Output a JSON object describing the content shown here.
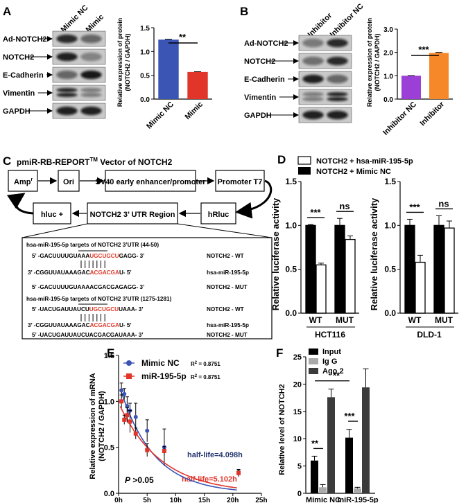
{
  "panels": {
    "A": "A",
    "B": "B",
    "C": "C",
    "D": "D",
    "E": "E",
    "F": "F"
  },
  "panelA": {
    "lanes": [
      "Mimic NC",
      "Mimic"
    ],
    "blot_labels": [
      "Ad-NOTCH2",
      "NOTCH2",
      "E-Cadherin",
      "Vimentin",
      "GAPDH"
    ],
    "sig": "**"
  },
  "panelB": {
    "lanes": [
      "Inhibitor",
      "Inhibitor NC"
    ],
    "blot_labels": [
      "Ad-NOTCH2",
      "NOTCH2",
      "E-Cadherin",
      "Vimentin",
      "GAPDH"
    ],
    "sig": "***"
  },
  "panelC": {
    "title_pre": "pmiR-RB-REPORT",
    "title_sup": "TM",
    "title_post": " Vector of NOTCH2",
    "boxes": {
      "amp": "Amp",
      "amp_sup": "r",
      "ori": "Ori",
      "sv40": "SV40 early enhancer/promoter",
      "t7": "Promoter T7",
      "hluc": "hluc +",
      "utr": "NOTCH2 3’ UTR Region",
      "hrluc": "hRluc"
    },
    "site1": {
      "header": "hsa-miR-195-5p targets of NOTCH2 3’UTR  (44-50)",
      "wt_pre": "5’ -GACUUUUGUAAA",
      "wt_red": "UGCUGCU",
      "wt_post": "GAGG-  3’",
      "wt_name": "NOTCH2 - WT",
      "mir_pre": "3’ -CGGUUAUAAAGAC",
      "mir_red": "ACGACGA",
      "mir_post": "U-  5’",
      "mir_name": "hsa-miR-195-5p",
      "mut": "5’ -GACUUUUGUAAAACGACGAGAGG-  3’",
      "mut_name": "NOTCH2 - MUT"
    },
    "site2": {
      "header": "hsa-miR-195-5p targets of NOTCH2 3’UTR  (1275-1281)",
      "wt_pre": "5’ -UACUGAUUAUCU",
      "wt_red": "UGCUGCU",
      "wt_post": "UAAA-  3’",
      "wt_name": "NOTCH2 - WT",
      "mir_pre": "3’ -CGGUUAUAAAGAC",
      "mir_red": "ACGACGA",
      "mir_post": "U-  5’",
      "mir_name": "hsa-miR-195-5p",
      "mut": "5’ -UACUGAUUAUCUACGACGAUAAA-  3’",
      "mut_name": "NOTCH2 - MUT"
    }
  },
  "panelD": {
    "legend": [
      "NOTCH2 + hsa-miR-195-5p",
      "NOTCH2 + Mimic NC"
    ]
  },
  "panelE": {
    "legend": [
      {
        "name": "Mimic NC",
        "r2": "R",
        "r2b": "2",
        "r2c": " = 0.8751"
      },
      {
        "name": "miR-195-5p",
        "r2": "R",
        "r2b": "2",
        "r2c": " = 0.8751"
      }
    ],
    "half_life": [
      "half-life=4.098h",
      "half-life=5.102h"
    ],
    "pval_p": "P",
    "pval_rest": " >0.05"
  },
  "panelF": {
    "legend": [
      "Input",
      "Ig G",
      "Ago 2"
    ]
  },
  "colors": {
    "blue": "#3a55b4",
    "red": "#e2352a",
    "purple": "#9b3fd6",
    "orange": "#f7882a",
    "navy": "#24366f",
    "mired": "#e03a2a"
  },
  "chart_data": [
    {
      "id": "A",
      "type": "bar",
      "categories": [
        "Mimic NC",
        "Mimic"
      ],
      "values": [
        1.25,
        0.57
      ],
      "errors": [
        0.01,
        0.005
      ],
      "colors": [
        "#3a55b4",
        "#e2352a"
      ],
      "ylabel": "Relative expression of  protein\n(NOTCH2 / GAPDH)",
      "ylim": [
        0,
        1.5
      ],
      "yticks": [
        0.0,
        0.5,
        1.0,
        1.5
      ],
      "ytick_labels": [
        "0.0",
        "0.5",
        "1.0",
        "1.5"
      ],
      "sig": "**"
    },
    {
      "id": "B",
      "type": "bar",
      "categories": [
        "Inhibitor NC",
        "Inhibitor"
      ],
      "values": [
        1.0,
        1.98
      ],
      "errors": [
        0.005,
        0.02
      ],
      "colors": [
        "#9b3fd6",
        "#f7882a"
      ],
      "ylabel": "Relative expression of  protein\n(NOTCH2 / GAPDH)",
      "ylim": [
        0,
        3.0
      ],
      "yticks": [
        0.0,
        1.0,
        2.0,
        3.0
      ],
      "ytick_labels": [
        "0.0",
        "1.0",
        "2.0",
        "3.0"
      ],
      "sig": "***"
    },
    {
      "id": "D1",
      "type": "bar",
      "title": "HCT116",
      "categories": [
        "WT",
        "MUT"
      ],
      "series": [
        {
          "name": "NOTCH2 + Mimic NC",
          "values": [
            1.0,
            1.0
          ],
          "errors": [
            0.01,
            0.08
          ]
        },
        {
          "name": "NOTCH2 + hsa-miR-195-5p",
          "values": [
            0.55,
            0.84
          ],
          "errors": [
            0.02,
            0.04
          ]
        }
      ],
      "ylabel": "Relative luciferase activity",
      "ylim": [
        0,
        1.5
      ],
      "yticks": [
        0.0,
        0.5,
        1.0,
        1.5
      ],
      "ytick_labels": [
        "0.0",
        "0.5",
        "1.0",
        "1.5"
      ],
      "sig": [
        "***",
        "ns"
      ]
    },
    {
      "id": "D2",
      "type": "bar",
      "title": "DLD-1",
      "categories": [
        "WT",
        "MUT"
      ],
      "series": [
        {
          "name": "NOTCH2 + Mimic NC",
          "values": [
            1.0,
            1.0
          ],
          "errors": [
            0.07,
            0.11
          ]
        },
        {
          "name": "NOTCH2 + hsa-miR-195-5p",
          "values": [
            0.58,
            0.97
          ],
          "errors": [
            0.08,
            0.08
          ]
        }
      ],
      "ylabel": "Relative luciferase activity",
      "ylim": [
        0,
        1.5
      ],
      "yticks": [
        0.0,
        0.5,
        1.0,
        1.5
      ],
      "ytick_labels": [
        "0.0",
        "0.5",
        "1.0",
        "1.5"
      ],
      "sig": [
        "***",
        "ns"
      ]
    },
    {
      "id": "E",
      "type": "line",
      "xlim": [
        0,
        25
      ],
      "ylim": [
        0,
        1.5
      ],
      "xticks": [
        0,
        5,
        10,
        15,
        20,
        25
      ],
      "xtick_labels": [
        "0h",
        "5h",
        "10h",
        "15h",
        "20h",
        "25h"
      ],
      "yticks": [
        0.0,
        0.5,
        1.0,
        1.5
      ],
      "ytick_labels": [
        "0.0",
        "0.5",
        "1.0",
        "1.5"
      ],
      "ylabel": "Relative expression of  mRNA\n(NOTCH2 / GAPDH)",
      "series": [
        {
          "name": "Mimic NC",
          "x": [
            0.5,
            1,
            1.5,
            2,
            3,
            5,
            8,
            21
          ],
          "y": [
            1.12,
            1.08,
            0.95,
            0.9,
            0.83,
            0.68,
            0.5,
            0.22
          ],
          "errors": [
            0.08,
            0.06,
            0.1,
            0.08,
            0.15,
            0.12,
            0.2,
            0.04
          ]
        },
        {
          "name": "miR-195-5p",
          "x": [
            0.5,
            1,
            1.5,
            2,
            3,
            5,
            8,
            21
          ],
          "y": [
            1.0,
            0.8,
            0.85,
            0.78,
            0.65,
            0.47,
            0.46,
            0.22
          ],
          "errors": [
            0.07,
            0.05,
            0.08,
            0.12,
            0.06,
            0.07,
            0.05,
            0.03
          ]
        }
      ]
    },
    {
      "id": "F",
      "type": "bar",
      "categories": [
        "Mimic NC",
        "miR-195-5p"
      ],
      "ylabel": "Relative level of NOTCH2",
      "ylim": [
        0,
        25
      ],
      "yticks": [
        0,
        5,
        10,
        15,
        20,
        25
      ],
      "ytick_labels": [
        "0",
        "5",
        "10",
        "15",
        "20",
        "25"
      ],
      "series": [
        {
          "name": "Input",
          "values": [
            6.0,
            10.2
          ],
          "errors": [
            0.8,
            1.5
          ]
        },
        {
          "name": "Ig G",
          "values": [
            1.1,
            0.9
          ],
          "errors": [
            0.5,
            0.2
          ]
        },
        {
          "name": "Ago 2",
          "values": [
            17.6,
            19.4
          ],
          "errors": [
            1.5,
            3.4
          ]
        }
      ],
      "sig": [
        "**",
        "***",
        "**"
      ]
    }
  ]
}
